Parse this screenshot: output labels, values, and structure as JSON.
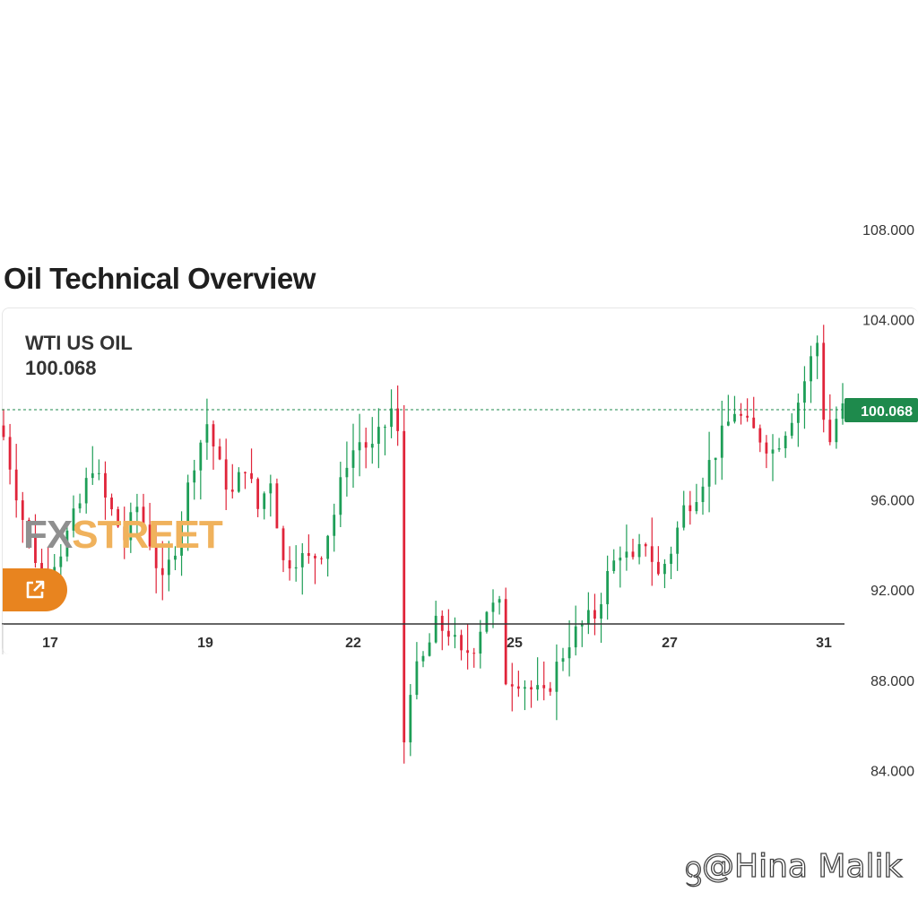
{
  "page": {
    "title": "Oil Technical Overview"
  },
  "instrument": {
    "name": "WTI US OIL",
    "price": "100.068"
  },
  "brand": {
    "logo_fx": "FX",
    "logo_street": "STREET",
    "popout_icon": "external-link-icon"
  },
  "watermark": {
    "text": "@Hina Malik",
    "icon": "spiral-icon"
  },
  "colors": {
    "up": "#1e9e57",
    "down": "#e0243a",
    "price_tag": "#1e8a4c",
    "button": "#e8841f",
    "logo_fx": "#8f8f8f",
    "logo_street": "#f0b25c"
  },
  "chart_data": {
    "type": "candlestick",
    "title": "",
    "x_tick_labels": [
      "17",
      "19",
      "22",
      "25",
      "27",
      "31"
    ],
    "y_tick_labels": [
      "108.000",
      "104.000",
      "100.000",
      "96.000",
      "92.000",
      "88.000",
      "84.000"
    ],
    "ylim": [
      82,
      110
    ],
    "current_price": 100.068,
    "current_price_label": "100.068",
    "grid": false,
    "price_line": "dotted",
    "close_path": [
      [
        0,
        98.8
      ],
      [
        3,
        95.2
      ],
      [
        6,
        92.6
      ],
      [
        9,
        93.8
      ],
      [
        12,
        95.8
      ],
      [
        14,
        97.6
      ],
      [
        16,
        96.0
      ],
      [
        19,
        94.3
      ],
      [
        21,
        95.7
      ],
      [
        23,
        94.2
      ],
      [
        25,
        92.2
      ],
      [
        27,
        94.0
      ],
      [
        30,
        97.8
      ],
      [
        32,
        99.4
      ],
      [
        34,
        97.4
      ],
      [
        36,
        96.2
      ],
      [
        38,
        97.6
      ],
      [
        40,
        95.6
      ],
      [
        42,
        97.0
      ],
      [
        44,
        93.2
      ],
      [
        46,
        93.5
      ],
      [
        48,
        93.3
      ],
      [
        50,
        93.8
      ],
      [
        52,
        95.4
      ],
      [
        54,
        97.8
      ],
      [
        56,
        98.6
      ],
      [
        58,
        98.2
      ],
      [
        60,
        99.3
      ],
      [
        61,
        100.0
      ],
      [
        62,
        98.8
      ],
      [
        62.8,
        84.8
      ],
      [
        64,
        87.8
      ],
      [
        66,
        88.9
      ],
      [
        68,
        90.4
      ],
      [
        70,
        90.2
      ],
      [
        72,
        89.0
      ],
      [
        74,
        89.6
      ],
      [
        76,
        91.2
      ],
      [
        78,
        91.2
      ],
      [
        79,
        88.1
      ],
      [
        81,
        88.1
      ],
      [
        83,
        87.6
      ],
      [
        85,
        87.2
      ],
      [
        87,
        88.6
      ],
      [
        89,
        89.8
      ],
      [
        91,
        90.4
      ],
      [
        93,
        90.9
      ],
      [
        95,
        92.6
      ],
      [
        97,
        93.8
      ],
      [
        99,
        93.1
      ],
      [
        101,
        94.2
      ],
      [
        103,
        92.6
      ],
      [
        105,
        93.8
      ],
      [
        107,
        95.6
      ],
      [
        109,
        96.4
      ],
      [
        111,
        97.6
      ],
      [
        113,
        98.8
      ],
      [
        115,
        100.0
      ],
      [
        117,
        99.2
      ],
      [
        119,
        98.8
      ],
      [
        121,
        98.2
      ],
      [
        123,
        99.2
      ],
      [
        125,
        100.4
      ],
      [
        127,
        102.2
      ],
      [
        128,
        103.0
      ],
      [
        129,
        99.8
      ],
      [
        130,
        98.6
      ],
      [
        131,
        99.6
      ],
      [
        132,
        100.0
      ]
    ]
  }
}
